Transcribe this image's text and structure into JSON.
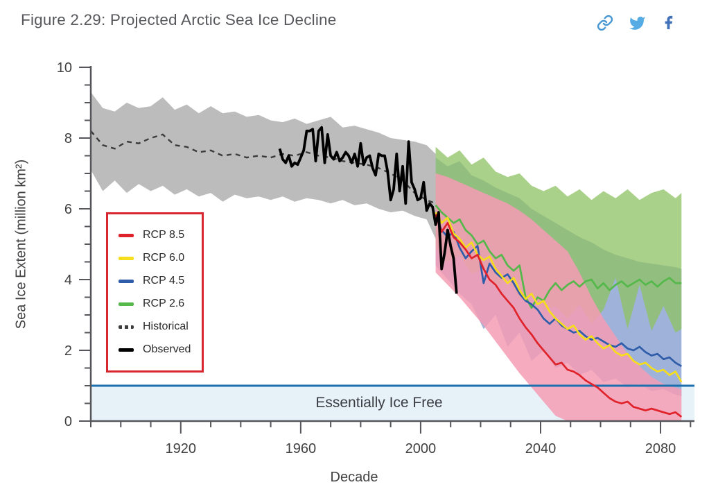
{
  "header": {
    "title": "Figure 2.29: Projected Arctic Sea Ice Decline"
  },
  "share": {
    "icons": [
      {
        "name": "copy-link",
        "color": "#4697d4"
      },
      {
        "name": "twitter",
        "color": "#55abe4"
      },
      {
        "name": "facebook",
        "color": "#4271b7"
      }
    ]
  },
  "colors": {
    "axis": "#55565a",
    "tick_text": "#414042",
    "historical_band": "#bcbcbc",
    "rcp85_band": "#f49cb4",
    "rcp45_band": "#9fb3da",
    "rcp26_band": "#8ec162",
    "icefree_fill": "#e7f1f8",
    "icefree_line": "#1c70ae",
    "lines": {
      "rcp85": "#e0222a",
      "rcp60": "#f6de1d",
      "rcp45": "#2f5da9",
      "rcp26": "#55b84b",
      "historical": "#3c3c3e",
      "observed": "#000000"
    }
  },
  "chart_data": {
    "type": "line",
    "xlabel": "Decade",
    "ylabel": "Sea Ice Extent (million km²)",
    "xlim": [
      1888,
      2091
    ],
    "ylim": [
      0,
      10
    ],
    "grid": false,
    "legend_position": "mid-left",
    "x_axis": {
      "range": [
        1890,
        2090
      ],
      "minor_tick_step": 10,
      "major_ticks": [
        1920,
        1960,
        2000,
        2040,
        2080
      ]
    },
    "y_axis": {
      "range": [
        0,
        10
      ],
      "minor_tick_step": 0.5,
      "major_ticks": [
        0,
        2,
        4,
        6,
        8,
        10
      ]
    },
    "annotation": {
      "text": "Essentially Ice Free",
      "threshold": 1.0
    },
    "legend": [
      {
        "label": "RCP 8.5",
        "color": "#e0222a",
        "dash": false
      },
      {
        "label": "RCP 6.0",
        "color": "#f6de1d",
        "dash": false
      },
      {
        "label": "RCP 4.5",
        "color": "#2f5da9",
        "dash": false
      },
      {
        "label": "RCP 2.6",
        "color": "#55b84b",
        "dash": false
      },
      {
        "label": "Historical",
        "color": "#3c3c3e",
        "dash": true
      },
      {
        "label": "Observed",
        "color": "#000000",
        "dash": false
      }
    ],
    "series": {
      "historical": {
        "x": [
          1890,
          1894,
          1898,
          1902,
          1906,
          1910,
          1914,
          1918,
          1922,
          1926,
          1930,
          1934,
          1938,
          1942,
          1946,
          1950,
          1954,
          1958,
          1962,
          1966,
          1970,
          1974,
          1978,
          1982,
          1986,
          1990,
          1994,
          1998,
          2002,
          2005
        ],
        "mean": [
          8.2,
          7.8,
          7.7,
          7.9,
          7.85,
          8.0,
          8.1,
          7.8,
          7.75,
          7.6,
          7.65,
          7.5,
          7.55,
          7.45,
          7.5,
          7.45,
          7.55,
          7.5,
          7.6,
          7.5,
          7.45,
          7.35,
          7.3,
          7.25,
          7.15,
          7.0,
          6.8,
          6.45,
          6.25,
          6.15
        ],
        "upper": [
          9.3,
          8.85,
          8.75,
          9.0,
          8.85,
          8.9,
          9.15,
          8.8,
          8.95,
          8.7,
          8.9,
          8.7,
          8.75,
          8.6,
          8.65,
          8.5,
          8.45,
          8.55,
          8.4,
          8.5,
          8.6,
          8.3,
          8.35,
          8.25,
          8.15,
          8.0,
          7.95,
          7.9,
          7.8,
          7.55
        ],
        "lower": [
          7.1,
          6.5,
          6.8,
          6.45,
          6.7,
          6.5,
          6.65,
          6.4,
          6.55,
          6.35,
          6.45,
          6.2,
          6.4,
          6.3,
          6.35,
          6.25,
          6.35,
          6.2,
          6.3,
          6.25,
          6.15,
          6.25,
          6.1,
          6.15,
          6.0,
          5.9,
          5.95,
          5.8,
          5.7,
          5.15
        ]
      },
      "observed": {
        "x": [
          1953,
          1954,
          1955,
          1956,
          1957,
          1958,
          1959,
          1960,
          1961,
          1962,
          1963,
          1964,
          1965,
          1966,
          1967,
          1968,
          1969,
          1970,
          1971,
          1972,
          1973,
          1974,
          1975,
          1976,
          1977,
          1978,
          1979,
          1980,
          1981,
          1982,
          1983,
          1984,
          1985,
          1986,
          1987,
          1988,
          1989,
          1990,
          1991,
          1992,
          1993,
          1994,
          1995,
          1996,
          1997,
          1998,
          1999,
          2000,
          2001,
          2002,
          2003,
          2004,
          2005,
          2006,
          2007,
          2008,
          2009,
          2010,
          2011,
          2012
        ],
        "y": [
          7.7,
          7.4,
          7.3,
          7.5,
          7.2,
          7.3,
          7.25,
          7.45,
          7.65,
          8.2,
          8.2,
          8.25,
          7.35,
          8.2,
          8.3,
          7.3,
          8.1,
          7.5,
          7.4,
          7.6,
          7.35,
          7.45,
          7.6,
          7.5,
          7.3,
          7.55,
          7.2,
          7.85,
          7.25,
          7.45,
          7.5,
          7.15,
          6.95,
          7.55,
          7.5,
          7.5,
          7.05,
          6.25,
          6.55,
          7.55,
          6.5,
          7.2,
          6.15,
          7.9,
          6.75,
          6.55,
          6.25,
          6.3,
          6.75,
          5.95,
          6.15,
          6.05,
          5.55,
          5.9,
          4.3,
          4.75,
          5.4,
          4.95,
          4.6,
          3.6
        ]
      },
      "projections": {
        "x": [
          2005,
          2007,
          2009,
          2011,
          2013,
          2015,
          2017,
          2019,
          2021,
          2023,
          2025,
          2027,
          2029,
          2031,
          2033,
          2035,
          2037,
          2039,
          2041,
          2043,
          2045,
          2047,
          2049,
          2051,
          2053,
          2055,
          2057,
          2059,
          2061,
          2063,
          2065,
          2067,
          2069,
          2071,
          2073,
          2075,
          2077,
          2079,
          2081,
          2083,
          2085,
          2087
        ],
        "rcp85": [
          5.85,
          5.35,
          5.6,
          5.2,
          5.05,
          4.85,
          4.6,
          4.7,
          4.3,
          4.0,
          3.85,
          3.6,
          3.4,
          3.2,
          2.9,
          2.65,
          2.45,
          2.2,
          2.0,
          1.8,
          1.6,
          1.65,
          1.45,
          1.4,
          1.3,
          1.15,
          1.05,
          0.95,
          0.8,
          0.65,
          0.55,
          0.5,
          0.55,
          0.4,
          0.35,
          0.3,
          0.35,
          0.3,
          0.25,
          0.2,
          0.25,
          0.12
        ],
        "rcp60": [
          5.9,
          5.6,
          5.75,
          5.3,
          5.15,
          4.9,
          5.05,
          4.7,
          4.55,
          4.65,
          4.3,
          4.1,
          3.9,
          4.05,
          3.7,
          3.45,
          3.6,
          3.3,
          3.4,
          3.1,
          2.9,
          2.75,
          2.6,
          2.7,
          2.45,
          2.3,
          2.4,
          2.2,
          2.05,
          2.15,
          1.95,
          1.85,
          1.9,
          1.7,
          1.6,
          1.65,
          1.5,
          1.4,
          1.45,
          1.3,
          1.4,
          1.1
        ],
        "rcp45": [
          5.8,
          5.4,
          5.2,
          5.35,
          4.9,
          4.6,
          4.8,
          4.95,
          3.9,
          4.45,
          4.2,
          4.05,
          4.15,
          3.9,
          3.6,
          3.4,
          3.3,
          3.15,
          2.9,
          2.75,
          2.9,
          2.7,
          2.6,
          2.5,
          2.55,
          2.4,
          2.3,
          2.35,
          2.25,
          2.15,
          2.1,
          2.2,
          2.05,
          2.0,
          2.1,
          1.95,
          1.85,
          1.9,
          1.75,
          1.8,
          1.65,
          1.55
        ],
        "rcp26": [
          6.1,
          5.9,
          5.75,
          5.6,
          5.7,
          5.4,
          5.25,
          5.0,
          5.1,
          4.8,
          4.6,
          4.7,
          4.4,
          4.25,
          4.4,
          3.5,
          3.2,
          3.5,
          3.4,
          3.7,
          3.9,
          3.7,
          3.85,
          3.95,
          3.8,
          3.95,
          4.0,
          3.75,
          3.9,
          3.7,
          3.85,
          3.95,
          3.8,
          3.9,
          4.0,
          3.85,
          3.95,
          3.8,
          3.95,
          4.05,
          3.9,
          3.9
        ]
      },
      "projection_bands": {
        "x": [
          2005,
          2009,
          2013,
          2017,
          2021,
          2025,
          2029,
          2033,
          2037,
          2041,
          2045,
          2049,
          2053,
          2057,
          2061,
          2065,
          2069,
          2073,
          2077,
          2081,
          2085,
          2087
        ],
        "rcp85": {
          "upper": [
            7.0,
            6.9,
            6.75,
            6.6,
            6.45,
            6.3,
            6.15,
            5.95,
            5.7,
            5.4,
            5.1,
            4.8,
            4.2,
            3.5,
            2.9,
            2.4,
            1.9,
            1.55,
            1.25,
            1.05,
            0.95,
            0.9
          ],
          "lower": [
            4.2,
            3.85,
            3.5,
            3.1,
            2.7,
            2.25,
            1.8,
            1.35,
            0.95,
            0.55,
            0.15,
            0,
            0,
            0,
            0,
            0,
            0,
            0,
            0,
            0,
            0,
            0
          ]
        },
        "rcp45": {
          "upper": [
            7.45,
            7.2,
            7.35,
            6.95,
            6.8,
            6.6,
            6.45,
            6.3,
            6.0,
            5.8,
            5.6,
            5.4,
            5.2,
            5.05,
            4.85,
            4.7,
            4.6,
            4.5,
            4.45,
            4.4,
            4.35,
            4.3
          ],
          "lower": [
            4.4,
            4.0,
            3.6,
            3.3,
            2.6,
            3.0,
            2.1,
            2.5,
            1.7,
            2.0,
            1.5,
            1.65,
            1.3,
            1.45,
            1.1,
            1.2,
            0.95,
            1.05,
            0.85,
            0.9,
            0.75,
            0.7
          ]
        },
        "rcp26": {
          "upper": [
            7.75,
            7.45,
            7.65,
            7.25,
            7.45,
            7.05,
            6.9,
            7.0,
            6.65,
            6.5,
            6.65,
            6.35,
            6.55,
            6.25,
            6.5,
            6.3,
            6.55,
            6.25,
            6.45,
            6.55,
            6.3,
            6.45
          ],
          "lower": [
            4.9,
            4.5,
            4.7,
            4.15,
            4.35,
            3.8,
            4.0,
            3.45,
            3.6,
            3.1,
            3.25,
            2.9,
            3.3,
            2.75,
            3.15,
            4.05,
            2.6,
            3.85,
            2.55,
            3.25,
            2.5,
            2.6
          ]
        }
      }
    }
  }
}
